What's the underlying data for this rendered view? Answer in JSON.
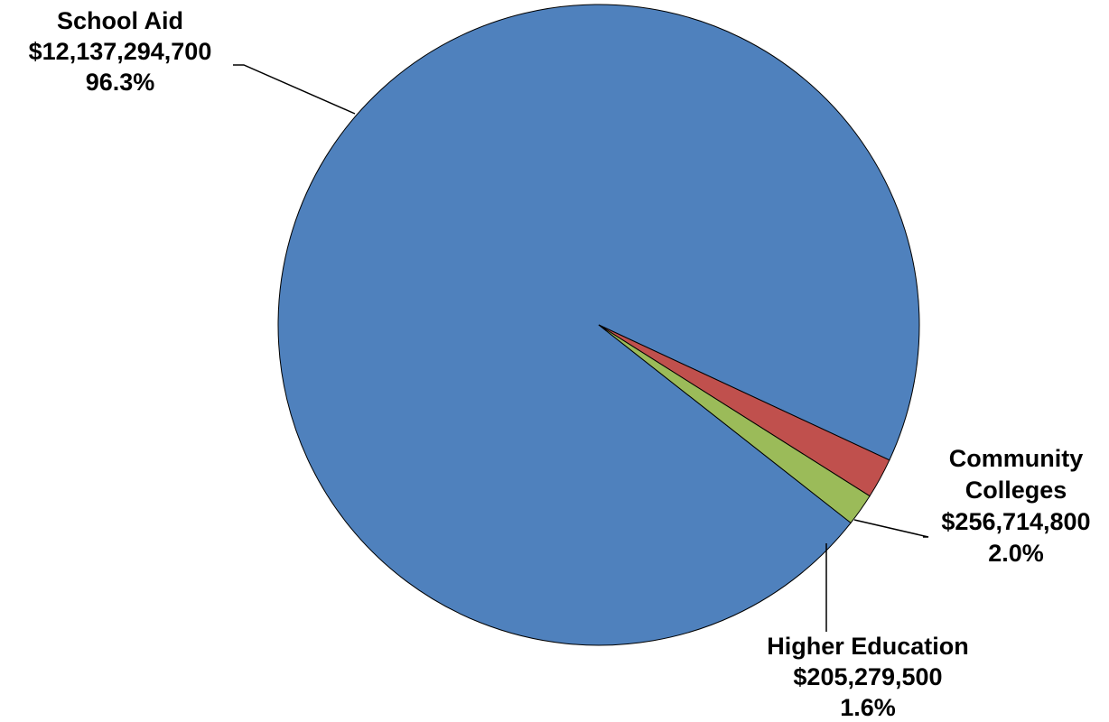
{
  "chart_data": {
    "type": "pie",
    "title": "",
    "slices": [
      {
        "name": "School Aid",
        "name_lines": [
          "School Aid"
        ],
        "amount": "$12,137,294,700",
        "value": 12137294700,
        "percent": "96.3%",
        "color": "#4F81BD"
      },
      {
        "name": "Community Colleges",
        "name_lines": [
          "Community",
          "Colleges"
        ],
        "amount": "$256,714,800",
        "value": 256714800,
        "percent": "2.0%",
        "color": "#C0504D"
      },
      {
        "name": "Higher Education",
        "name_lines": [
          "Higher Education"
        ],
        "amount": "$205,279,500",
        "value": 205279500,
        "percent": "1.6%",
        "color": "#9BBB59"
      }
    ],
    "legend": "none",
    "data_labels": "outside-with-leader-lines"
  }
}
